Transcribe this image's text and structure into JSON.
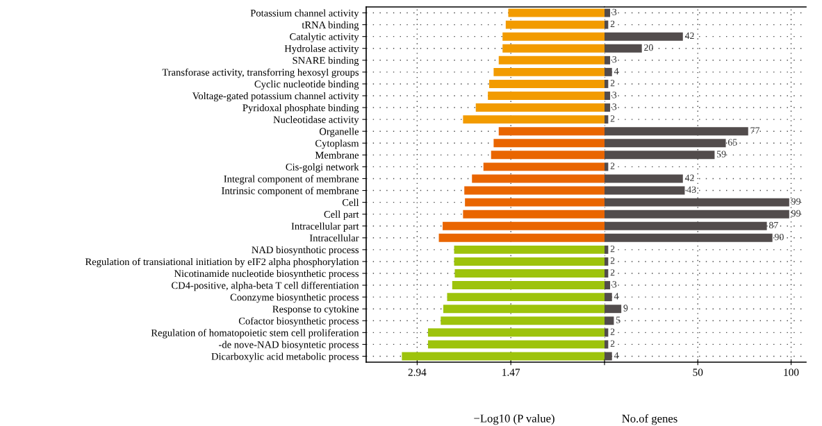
{
  "chart_data": [
    {
      "type": "bar",
      "orientation": "horizontal",
      "xlabel": "−Log10 (P value)",
      "categories": [
        "Potassium channel activity",
        "tRNA binding",
        "Catalytic activity",
        "Hydrolase activity",
        "SNARE binding",
        "Transforase activity, transforring hexosyl groups",
        "Cyclic nucleotide binding",
        "Voltage-gated potassium channel activity",
        "Pyridoxal phosphate binding",
        "Nucleotidase activity",
        "Organelle",
        "Cytoplasm",
        "Membrane",
        "Cis-golgi network",
        "Integral component of membrane",
        "Intrinsic component of membrane",
        "Cell",
        "Cell part",
        "Intracellular part",
        "Intracellular",
        "NAD biosynthotic process",
        "Regulation of transiational initiation by eIF2 alpha phosphorylation",
        "Nicotinamide nucleotide biosynthetic process",
        "CD4-positive, alpha-beta T cell differentiation",
        "Coonzyme biosynthetic process",
        "Response to cytokine",
        "Cofactor biosynthetic process",
        "Regulation of homatopoietic stem cell proliferation",
        "-de nove-NAD biosyntetic process",
        "Dicarboxylic acid metabolic process"
      ],
      "values": [
        1.51,
        1.55,
        1.6,
        1.6,
        1.66,
        1.74,
        1.81,
        1.83,
        2.02,
        2.22,
        1.66,
        1.74,
        1.78,
        1.9,
        2.08,
        2.2,
        2.19,
        2.22,
        2.54,
        2.6,
        2.36,
        2.36,
        2.35,
        2.39,
        2.47,
        2.53,
        2.57,
        2.77,
        2.77,
        3.18
      ],
      "colors": [
        "#f29b00",
        "#f29b00",
        "#f29b00",
        "#f29b00",
        "#f29b00",
        "#f29b00",
        "#f29b00",
        "#f29b00",
        "#f29b00",
        "#f29b00",
        "#e96500",
        "#e96500",
        "#e96500",
        "#e96500",
        "#e96500",
        "#e96500",
        "#e96500",
        "#e96500",
        "#e96500",
        "#e96500",
        "#9dc30c",
        "#9dc30c",
        "#9dc30c",
        "#9dc30c",
        "#9dc30c",
        "#9dc30c",
        "#9dc30c",
        "#9dc30c",
        "#9dc30c",
        "#9dc30c"
      ],
      "xlim": [
        3.74,
        0
      ],
      "xticks": [
        2.94,
        1.47
      ],
      "grid": true
    },
    {
      "type": "bar",
      "orientation": "horizontal",
      "xlabel": "No.of genes",
      "tick_labels": "x",
      "categories": [
        null,
        null,
        null,
        null,
        null,
        null,
        null,
        null,
        null,
        null,
        null,
        null,
        null,
        null,
        null,
        null,
        null,
        null,
        null,
        null,
        null,
        null,
        null,
        null,
        null,
        null,
        null,
        null,
        null,
        null
      ],
      "values": [
        3,
        2,
        42,
        20,
        3,
        4,
        2,
        3,
        3,
        2,
        77,
        65,
        59,
        2,
        42,
        43,
        99,
        99,
        87,
        90,
        2,
        2,
        2,
        3,
        4,
        9,
        5,
        2,
        2,
        4
      ],
      "color": "#524c4c",
      "data_labels": true,
      "xlim": [
        0,
        108
      ],
      "xticks": [
        {
          "value": 0,
          "label": null
        },
        50,
        100
      ],
      "grid": true
    }
  ]
}
